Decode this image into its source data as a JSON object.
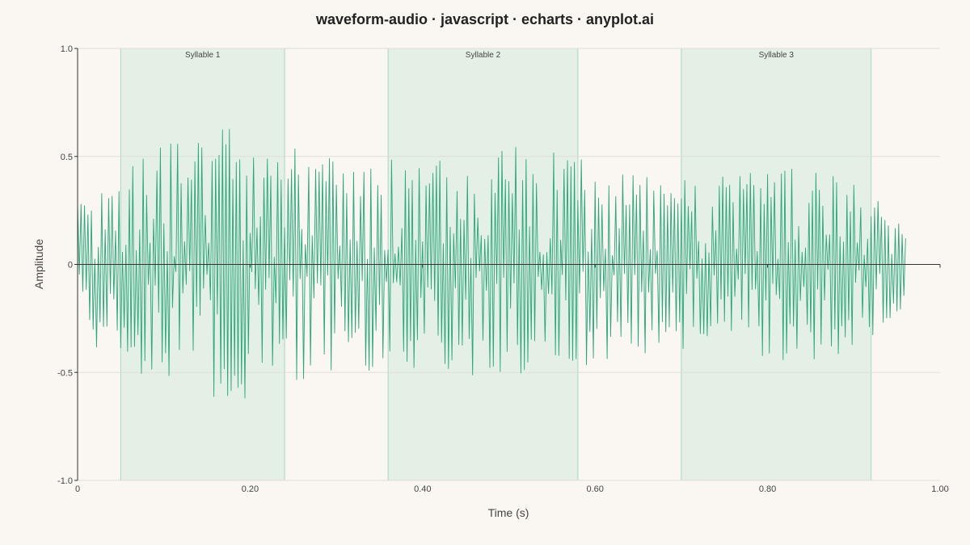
{
  "chart_data": {
    "type": "area",
    "title": "waveform-audio · javascript · echarts · anyplot.ai",
    "xlabel": "Time (s)",
    "ylabel": "Amplitude",
    "xlim": [
      0,
      1.0
    ],
    "ylim": [
      -1.0,
      1.0
    ],
    "x_ticks": [
      0,
      0.2,
      0.4,
      0.6,
      0.8,
      1.0
    ],
    "x_tick_labels": [
      "0",
      "0.20",
      "0.40",
      "0.60",
      "0.80",
      "1.00"
    ],
    "y_ticks": [
      1.0,
      0.5,
      0,
      -0.5,
      -1.0
    ],
    "y_tick_labels": [
      "1.0",
      "0.5",
      "0",
      "-0.5",
      "-1.0"
    ],
    "grid": true,
    "colors": {
      "line": "#2BA57A",
      "fill_top": "#5BBF97",
      "fill_bottom": "#EEF3EC",
      "region_fill": "#DCEEE2",
      "region_border": "#A8D6BF",
      "grid": "#E0DDD6",
      "axis": "#333333"
    },
    "regions": [
      {
        "label": "Syllable 1",
        "start": 0.05,
        "end": 0.24
      },
      {
        "label": "Syllable 2",
        "start": 0.36,
        "end": 0.58
      },
      {
        "label": "Syllable 3",
        "start": 0.7,
        "end": 0.92
      }
    ],
    "waveform": {
      "duration": 0.96,
      "envelope": [
        [
          0.0,
          0.34
        ],
        [
          0.05,
          0.45
        ],
        [
          0.1,
          0.58
        ],
        [
          0.15,
          0.64
        ],
        [
          0.2,
          0.62
        ],
        [
          0.25,
          0.55
        ],
        [
          0.3,
          0.5
        ],
        [
          0.35,
          0.49
        ],
        [
          0.4,
          0.51
        ],
        [
          0.45,
          0.54
        ],
        [
          0.5,
          0.55
        ],
        [
          0.55,
          0.53
        ],
        [
          0.6,
          0.47
        ],
        [
          0.65,
          0.42
        ],
        [
          0.7,
          0.4
        ],
        [
          0.75,
          0.41
        ],
        [
          0.8,
          0.45
        ],
        [
          0.85,
          0.46
        ],
        [
          0.9,
          0.4
        ],
        [
          0.93,
          0.32
        ],
        [
          0.96,
          0.2
        ]
      ]
    }
  }
}
